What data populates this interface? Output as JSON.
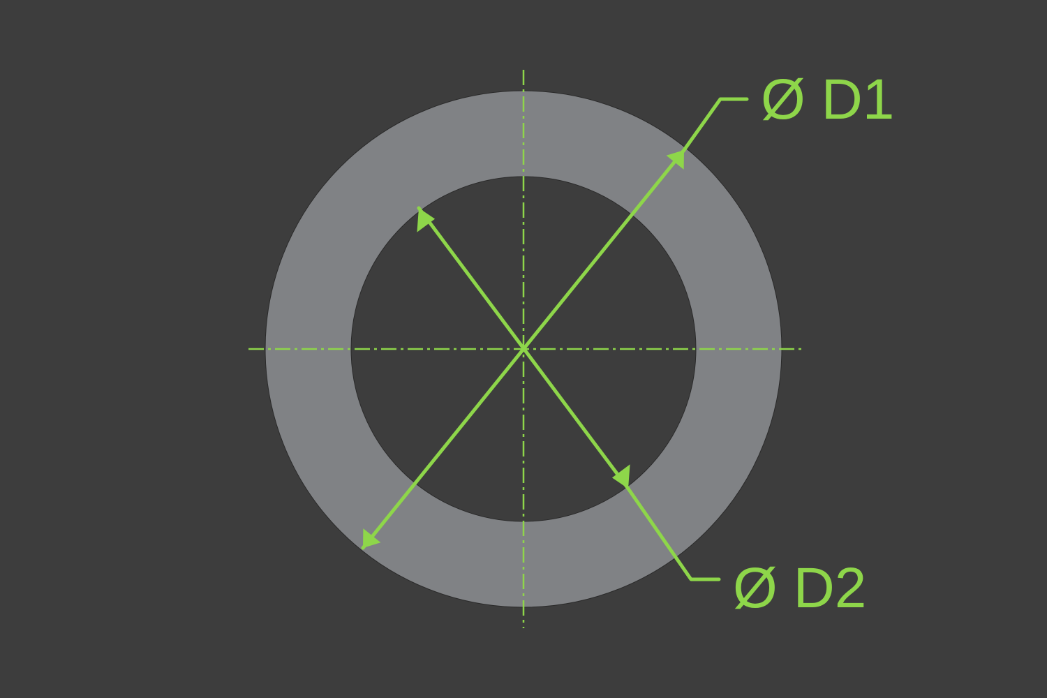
{
  "colors": {
    "background": "#3d3d3d",
    "ring": "#808285",
    "ring_outline": "#2a2a2a",
    "accent": "#8ed64a"
  },
  "labels": {
    "outer_diameter": "Ø D1",
    "inner_diameter": "Ø D2"
  }
}
